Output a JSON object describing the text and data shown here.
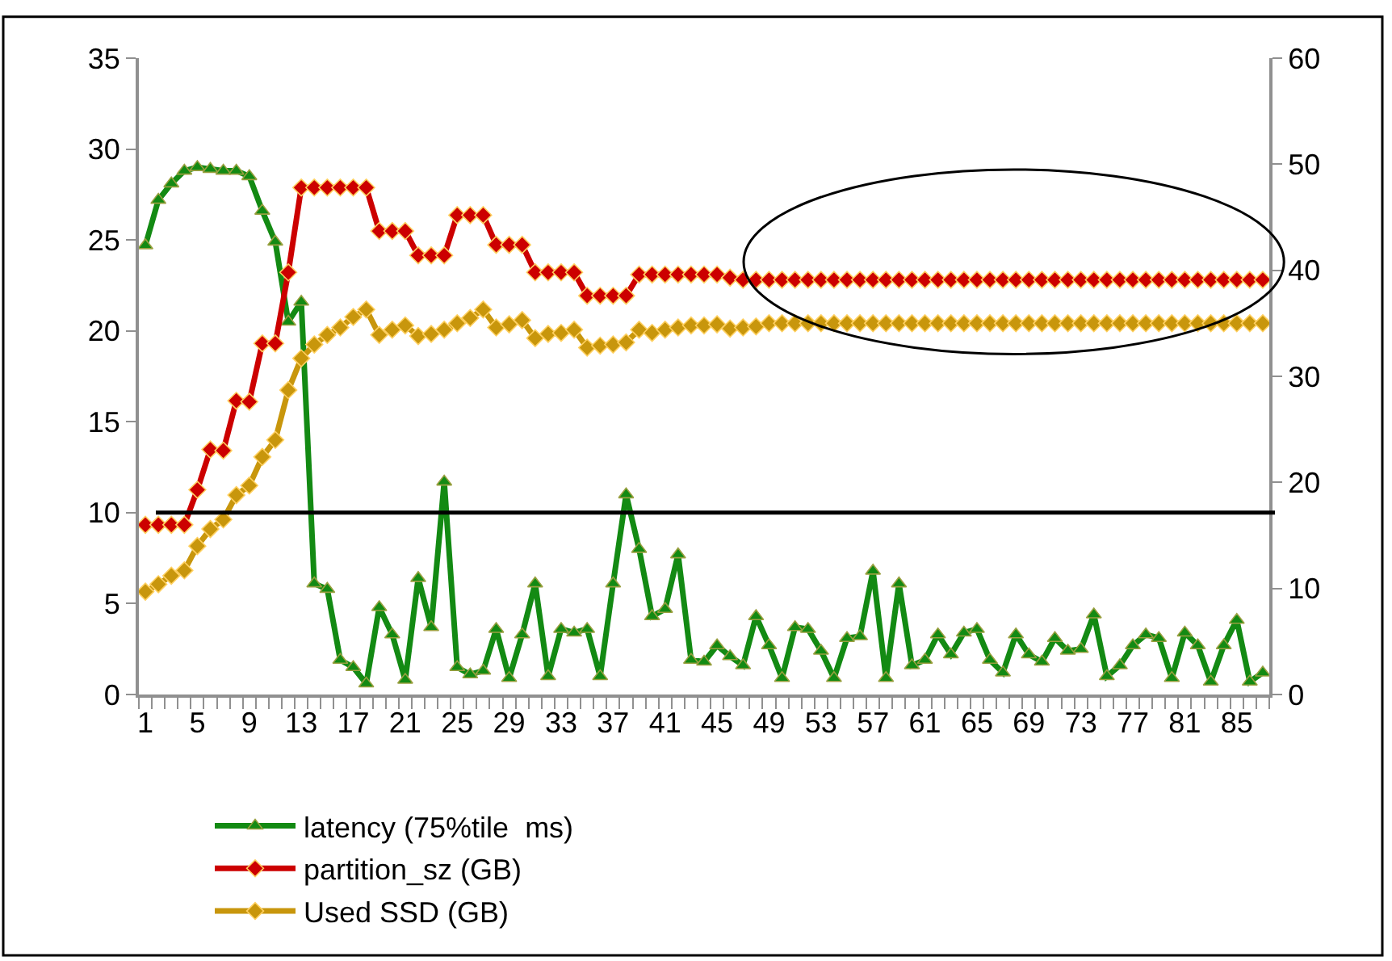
{
  "chart_data": {
    "type": "line",
    "categories": [
      "1",
      null,
      null,
      null,
      "5",
      null,
      null,
      null,
      "9",
      null,
      null,
      null,
      "13",
      null,
      null,
      null,
      "17",
      null,
      null,
      null,
      "21",
      null,
      null,
      null,
      "25",
      null,
      null,
      null,
      "29",
      null,
      null,
      null,
      "33",
      null,
      null,
      null,
      "37",
      null,
      null,
      null,
      "41",
      null,
      null,
      null,
      "45",
      null,
      null,
      null,
      "49",
      null,
      null,
      null,
      "53",
      null,
      null,
      null,
      "57",
      null,
      null,
      null,
      "61",
      null,
      null,
      null,
      "65",
      null,
      null,
      null,
      "69",
      null,
      null,
      null,
      "73",
      null,
      null,
      null,
      "77",
      null,
      null,
      null,
      "81",
      null,
      null,
      null,
      "85",
      null,
      null
    ],
    "series": [
      {
        "name": "latency (75%tile  ms)",
        "color": "#138a13",
        "marker": "triangle",
        "values": [
          24.7,
          27.2,
          28.1,
          28.8,
          29.0,
          28.9,
          28.8,
          28.8,
          28.5,
          26.6,
          24.9,
          20.5,
          21.6,
          6.1,
          5.8,
          1.9,
          1.5,
          0.6,
          4.8,
          3.3,
          0.8,
          6.4,
          3.7,
          11.7,
          1.5,
          1.1,
          1.3,
          3.6,
          0.9,
          3.3,
          6.1,
          1.0,
          3.6,
          3.4,
          3.6,
          1.0,
          6.1,
          11.0,
          8.0,
          4.3,
          4.7,
          7.7,
          1.9,
          1.8,
          2.7,
          2.1,
          1.6,
          4.3,
          2.7,
          0.9,
          3.7,
          3.6,
          2.4,
          0.9,
          3.1,
          3.2,
          6.8,
          0.9,
          6.1,
          1.6,
          1.9,
          3.3,
          2.2,
          3.4,
          3.6,
          1.9,
          1.2,
          3.3,
          2.2,
          1.8,
          3.1,
          2.4,
          2.5,
          4.4,
          1.0,
          1.6,
          2.7,
          3.3,
          3.1,
          0.9,
          3.4,
          2.7,
          0.7,
          2.7,
          4.1,
          0.7,
          1.2
        ]
      },
      {
        "name": "partition_sz (GB)",
        "color": "#cc0000",
        "marker": "diamond",
        "axis": "y2",
        "values": [
          16.0,
          16.0,
          16.0,
          16.0,
          19.3,
          23.1,
          23.0,
          27.7,
          27.6,
          33.1,
          33.1,
          39.8,
          47.8,
          47.8,
          47.8,
          47.8,
          47.8,
          47.8,
          43.7,
          43.7,
          43.7,
          41.4,
          41.4,
          41.4,
          45.2,
          45.2,
          45.2,
          42.4,
          42.4,
          42.4,
          39.8,
          39.8,
          39.8,
          39.8,
          37.6,
          37.6,
          37.6,
          37.6,
          39.6,
          39.6,
          39.6,
          39.6,
          39.6,
          39.6,
          39.6,
          39.3,
          39.1,
          39.1,
          39.1,
          39.1,
          39.1,
          39.1,
          39.1,
          39.1,
          39.1,
          39.1,
          39.1,
          39.1,
          39.1,
          39.1,
          39.1,
          39.1,
          39.1,
          39.1,
          39.1,
          39.1,
          39.1,
          39.1,
          39.1,
          39.1,
          39.1,
          39.1,
          39.1,
          39.1,
          39.1,
          39.1,
          39.1,
          39.1,
          39.1,
          39.1,
          39.1,
          39.1,
          39.1,
          39.1,
          39.1,
          39.1,
          39.1
        ]
      },
      {
        "name": "Used SSD (GB)",
        "color": "#c8960c",
        "marker": "diamond",
        "axis": "y2",
        "values": [
          9.7,
          10.4,
          11.2,
          11.7,
          14.0,
          15.6,
          16.5,
          18.8,
          19.7,
          22.4,
          24.0,
          28.7,
          31.7,
          33.0,
          33.9,
          34.6,
          35.6,
          36.3,
          33.9,
          34.4,
          34.8,
          33.8,
          34.0,
          34.4,
          35.0,
          35.5,
          36.3,
          34.6,
          34.9,
          35.3,
          33.6,
          34.0,
          34.1,
          34.4,
          32.7,
          32.9,
          33.0,
          33.2,
          34.4,
          34.1,
          34.4,
          34.6,
          34.8,
          34.8,
          34.9,
          34.5,
          34.6,
          34.7,
          35.0,
          35.0,
          35.0,
          35.0,
          35.0,
          35.0,
          35.0,
          35.0,
          35.0,
          35.0,
          35.0,
          35.0,
          35.0,
          35.0,
          35.0,
          35.0,
          35.0,
          35.0,
          35.0,
          35.0,
          35.0,
          35.0,
          35.0,
          35.0,
          35.0,
          35.0,
          35.0,
          35.0,
          35.0,
          35.0,
          35.0,
          35.0,
          35.0,
          35.0,
          35.0,
          35.0,
          35.0,
          35.0,
          35.0
        ]
      }
    ],
    "ylim": [
      0,
      35
    ],
    "yticks": [
      0,
      5,
      10,
      15,
      20,
      25,
      30,
      35
    ],
    "y2lim": [
      0,
      60
    ],
    "y2ticks": [
      0,
      10,
      20,
      30,
      40,
      50,
      60
    ],
    "ref_lines": [
      {
        "axis": "y",
        "value": 10,
        "color": "#000000"
      }
    ],
    "legend": "bottom",
    "line_style": "solid"
  }
}
